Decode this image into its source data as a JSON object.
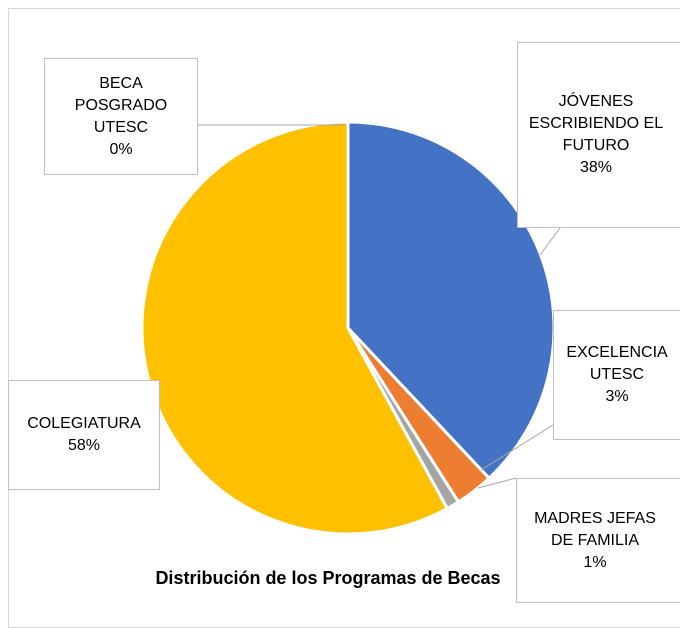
{
  "chart_data": {
    "type": "pie",
    "title": "Distribución de los Programas de Becas",
    "categories": [
      "JÓVENES ESCRIBIENDO EL FUTURO",
      "EXCELENCIA UTESC",
      "MADRES JEFAS DE FAMILIA",
      "COLEGIATURA",
      "BECA POSGRADO UTESC"
    ],
    "values": [
      38,
      3,
      1,
      58,
      0
    ],
    "value_labels": [
      "38%",
      "3%",
      "1%",
      "58%",
      "0%"
    ],
    "colors": [
      "#4472c4",
      "#ed7d31",
      "#a5a5a5",
      "#ffc000",
      "#5b9bd5"
    ]
  }
}
